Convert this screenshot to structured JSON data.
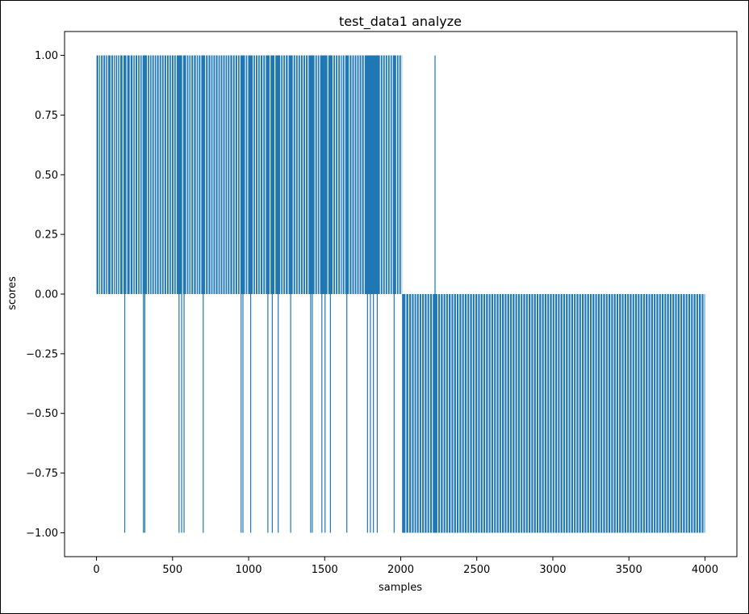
{
  "chart_data": {
    "type": "bar",
    "title": "test_data1 analyze",
    "xlabel": "samples",
    "ylabel": "scores",
    "xlim": [
      -210,
      4210
    ],
    "ylim": [
      -1.1,
      1.1
    ],
    "x_ticks": [
      0,
      500,
      1000,
      1500,
      2000,
      2500,
      3000,
      3500,
      4000
    ],
    "x_tick_labels": [
      "0",
      "500",
      "1000",
      "1500",
      "2000",
      "2500",
      "3000",
      "3500",
      "4000"
    ],
    "y_ticks": [
      1.0,
      0.75,
      0.5,
      0.25,
      0.0,
      -0.25,
      -0.5,
      -0.75,
      -1.0
    ],
    "y_tick_labels": [
      "1.00",
      "0.75",
      "0.50",
      "0.25",
      "0.00",
      "−0.25",
      "−0.50",
      "−0.75",
      "−1.00"
    ],
    "grid": false,
    "bar_color": "#1f77b4",
    "series": [
      {
        "segments": [
          {
            "x_start": 0,
            "x_end": 2009,
            "value": 1
          },
          {
            "x_start": 2009,
            "x_end": 4000,
            "value": -1
          }
        ],
        "exceptions": [
          {
            "x": 183,
            "value": -1
          },
          {
            "x": 306,
            "value": -1
          },
          {
            "x": 315,
            "value": -1
          },
          {
            "x": 540,
            "value": -1
          },
          {
            "x": 557,
            "value": -1
          },
          {
            "x": 573,
            "value": -1
          },
          {
            "x": 699,
            "value": -1
          },
          {
            "x": 948,
            "value": -1
          },
          {
            "x": 960,
            "value": -1
          },
          {
            "x": 1011,
            "value": -1
          },
          {
            "x": 1124,
            "value": -1
          },
          {
            "x": 1153,
            "value": -1
          },
          {
            "x": 1192,
            "value": -1
          },
          {
            "x": 1274,
            "value": -1
          },
          {
            "x": 1405,
            "value": -1
          },
          {
            "x": 1416,
            "value": -1
          },
          {
            "x": 1479,
            "value": -1
          },
          {
            "x": 1500,
            "value": -1
          },
          {
            "x": 1535,
            "value": -1
          },
          {
            "x": 1643,
            "value": -1
          },
          {
            "x": 1779,
            "value": -1
          },
          {
            "x": 1798,
            "value": -1
          },
          {
            "x": 1818,
            "value": -1
          },
          {
            "x": 1843,
            "value": -1
          },
          {
            "x": 1954,
            "value": -1
          },
          {
            "x": 2223,
            "value": 1
          }
        ],
        "gaps": [
          12,
          24,
          40,
          57,
          71,
          92,
          108,
          121,
          136,
          150,
          171,
          196,
          218,
          237,
          251,
          268,
          283,
          297,
          332,
          347,
          361,
          377,
          392,
          409,
          425,
          441,
          458,
          474,
          489,
          506,
          521,
          563,
          589,
          604,
          618,
          635,
          653,
          667,
          683,
          714,
          731,
          748,
          763,
          779,
          796,
          811,
          827,
          843,
          858,
          874,
          892,
          908,
          925,
          940,
          976,
          991,
          1027,
          1042,
          1058,
          1073,
          1091,
          1107,
          1138,
          1170,
          1208,
          1223,
          1239,
          1257,
          1290,
          1306,
          1322,
          1338,
          1355,
          1371,
          1388,
          1433,
          1449,
          1464,
          1518,
          1552,
          1568,
          1584,
          1600,
          1613,
          1629,
          1659,
          1676,
          1692,
          1708,
          1724,
          1740,
          1757,
          1863,
          1879,
          1895,
          1911,
          1927,
          1942,
          1970,
          1985,
          2001,
          2031,
          2050,
          2068,
          2085,
          2101,
          2118,
          2135,
          2152,
          2170,
          2187,
          2205,
          2241,
          2258,
          2276,
          2293,
          2310,
          2328,
          2345,
          2363,
          2380,
          2398,
          2415,
          2433,
          2450,
          2468,
          2485,
          2503,
          2520,
          2538,
          2555,
          2573,
          2590,
          2608,
          2625,
          2643,
          2660,
          2678,
          2695,
          2713,
          2730,
          2748,
          2765,
          2783,
          2800,
          2818,
          2835,
          2853,
          2870,
          2888,
          2905,
          2923,
          2940,
          2958,
          2975,
          2993,
          3010,
          3028,
          3045,
          3063,
          3080,
          3098,
          3115,
          3133,
          3150,
          3168,
          3185,
          3203,
          3220,
          3238,
          3255,
          3273,
          3290,
          3308,
          3325,
          3343,
          3360,
          3378,
          3395,
          3413,
          3430,
          3448,
          3465,
          3483,
          3500,
          3518,
          3535,
          3553,
          3570,
          3588,
          3605,
          3623,
          3640,
          3658,
          3675,
          3693,
          3710,
          3728,
          3745,
          3763,
          3780,
          3798,
          3815,
          3833,
          3850,
          3868,
          3885,
          3903,
          3920,
          3938,
          3955,
          3973,
          3990
        ]
      }
    ]
  }
}
